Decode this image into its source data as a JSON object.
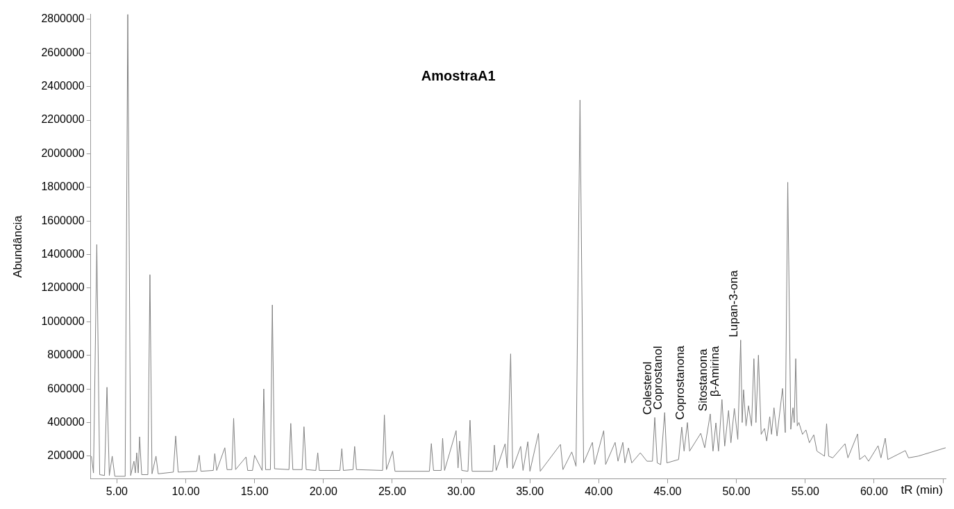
{
  "chart_data": {
    "type": "line",
    "title": "AmostraA1",
    "xlabel": "tR (min)",
    "ylabel": "Abundância",
    "xlim": [
      3.1,
      65.2
    ],
    "xticks": [
      {
        "value": 5,
        "label": "5.00"
      },
      {
        "value": 10,
        "label": "10.00"
      },
      {
        "value": 15,
        "label": "15.00"
      },
      {
        "value": 20,
        "label": "20.00"
      },
      {
        "value": 25,
        "label": "25.00"
      },
      {
        "value": 30,
        "label": "30.00"
      },
      {
        "value": 35,
        "label": "35.00"
      },
      {
        "value": 40,
        "label": "40.00"
      },
      {
        "value": 45,
        "label": "45.00"
      },
      {
        "value": 50,
        "label": "50.00"
      },
      {
        "value": 55,
        "label": "55.00"
      },
      {
        "value": 60,
        "label": "60.00"
      },
      {
        "value": 65,
        "label": null
      }
    ],
    "ylim": [
      64000,
      2830000
    ],
    "yticks": [
      200000,
      400000,
      600000,
      800000,
      1000000,
      1200000,
      1400000,
      1600000,
      1800000,
      2000000,
      2200000,
      2400000,
      2600000,
      2800000
    ],
    "grid": false,
    "legend": false,
    "marker": "none",
    "line_style": "solid",
    "series": [
      {
        "color": "#808080",
        "x": [
          3.15,
          3.3,
          3.54,
          3.75,
          4.1,
          4.28,
          4.45,
          4.66,
          4.85,
          5.6,
          5.79,
          6.0,
          6.24,
          6.34,
          6.44,
          6.55,
          6.65,
          6.8,
          7.25,
          7.4,
          7.55,
          7.84,
          8.0,
          9.1,
          9.27,
          9.45,
          10.8,
          10.98,
          11.1,
          12.0,
          12.11,
          12.25,
          12.84,
          13.0,
          13.35,
          13.48,
          13.62,
          14.38,
          14.5,
          14.85,
          15.0,
          15.55,
          15.67,
          15.8,
          16.15,
          16.29,
          16.45,
          17.5,
          17.63,
          17.78,
          18.45,
          18.59,
          18.75,
          19.45,
          19.59,
          19.7,
          21.2,
          21.34,
          21.45,
          22.15,
          22.27,
          22.4,
          24.3,
          24.43,
          24.58,
          25.03,
          25.2,
          27.7,
          27.84,
          28.0,
          28.55,
          28.66,
          28.8,
          29.64,
          29.78,
          29.9,
          30.05,
          30.5,
          30.65,
          30.8,
          32.3,
          32.42,
          32.55,
          33.2,
          33.35,
          33.6,
          33.75,
          34.33,
          34.5,
          34.85,
          35.0,
          35.62,
          35.75,
          37.22,
          37.4,
          38.04,
          38.35,
          38.64,
          38.9,
          39.54,
          39.7,
          40.36,
          40.5,
          41.19,
          41.4,
          41.75,
          41.9,
          42.16,
          42.4,
          43.02,
          43.5,
          43.9,
          44.07,
          44.25,
          44.5,
          44.79,
          44.95,
          45.8,
          46.03,
          46.2,
          46.44,
          46.6,
          47.41,
          47.7,
          48.1,
          48.3,
          48.51,
          48.7,
          48.95,
          49.15,
          49.43,
          49.6,
          49.85,
          50.1,
          50.31,
          50.42,
          50.52,
          50.7,
          50.88,
          51.1,
          51.27,
          51.42,
          51.6,
          51.8,
          52.04,
          52.2,
          52.42,
          52.55,
          52.73,
          52.95,
          53.35,
          53.55,
          53.73,
          53.95,
          54.11,
          54.2,
          54.31,
          54.42,
          54.54,
          54.8,
          55.05,
          55.3,
          55.62,
          55.85,
          56.4,
          56.55,
          56.7,
          57.0,
          57.89,
          58.1,
          58.8,
          58.95,
          59.33,
          59.6,
          60.29,
          60.5,
          60.81,
          61.0,
          62.27,
          62.5,
          63.2,
          65.2
        ],
        "values": [
          200000,
          100000,
          1460000,
          90000,
          85000,
          610000,
          85000,
          200000,
          80000,
          80000,
          2830000,
          85000,
          170000,
          100000,
          220000,
          100000,
          315000,
          90000,
          90000,
          1280000,
          95000,
          200000,
          95000,
          105000,
          320000,
          105000,
          110000,
          205000,
          110000,
          115000,
          215000,
          115000,
          250000,
          120000,
          120000,
          425000,
          120000,
          195000,
          115000,
          115000,
          205000,
          115000,
          600000,
          120000,
          120000,
          1100000,
          125000,
          120000,
          395000,
          120000,
          120000,
          375000,
          120000,
          115000,
          220000,
          115000,
          115000,
          245000,
          115000,
          120000,
          258000,
          120000,
          115000,
          445000,
          120000,
          230000,
          110000,
          110000,
          275000,
          115000,
          115000,
          307000,
          115000,
          352000,
          130000,
          290000,
          115000,
          110000,
          414000,
          110000,
          110000,
          266000,
          115000,
          274000,
          130000,
          809000,
          125000,
          258000,
          115000,
          286000,
          110000,
          336000,
          110000,
          270000,
          120000,
          225000,
          140000,
          2320000,
          160000,
          282000,
          150000,
          352000,
          150000,
          282000,
          170000,
          282000,
          160000,
          249000,
          160000,
          220000,
          170000,
          170000,
          430000,
          160000,
          150000,
          460000,
          160000,
          180000,
          373000,
          230000,
          400000,
          230000,
          336000,
          250000,
          451000,
          230000,
          398000,
          230000,
          537000,
          260000,
          472000,
          280000,
          484000,
          300000,
          891000,
          400000,
          595000,
          380000,
          500000,
          380000,
          780000,
          400000,
          801000,
          330000,
          365000,
          290000,
          435000,
          330000,
          488000,
          320000,
          603000,
          340000,
          1830000,
          360000,
          488000,
          400000,
          780000,
          380000,
          400000,
          330000,
          356000,
          280000,
          327000,
          230000,
          200000,
          393000,
          200000,
          190000,
          274000,
          190000,
          332000,
          180000,
          204000,
          170000,
          262000,
          190000,
          307000,
          180000,
          233000,
          190000,
          200000,
          250000
        ]
      }
    ],
    "annotations": [
      {
        "text": "Colesterol",
        "x": 44.07,
        "y": 430000
      },
      {
        "text": "Coprostanol",
        "x": 44.79,
        "y": 460000
      },
      {
        "text": "Coprostanona",
        "x": 46.44,
        "y": 400000
      },
      {
        "text": "Sitostanona",
        "x": 48.1,
        "y": 451000
      },
      {
        "text": "β-Amirina",
        "x": 48.95,
        "y": 537000
      },
      {
        "text": "Lupan-3-ona",
        "x": 50.31,
        "y": 891000
      }
    ]
  }
}
